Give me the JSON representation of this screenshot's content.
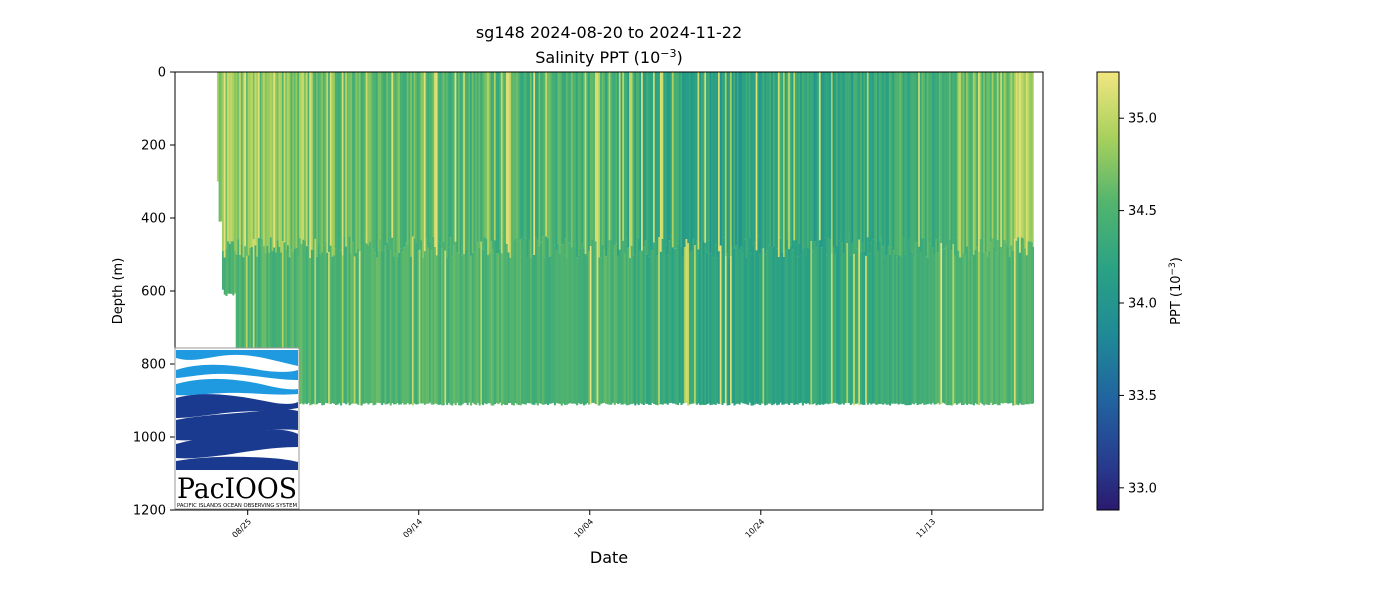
{
  "chart_data": {
    "type": "heatmap",
    "title": "sg148 2024-08-20 to 2024-11-22",
    "subtitle_prefix": "Salinity PPT (10",
    "subtitle_exp": "−3",
    "subtitle_suffix": ")",
    "xlabel": "Date",
    "ylabel": "Depth (m)",
    "x_ticks": [
      "08/25",
      "09/14",
      "10/04",
      "10/24",
      "11/13"
    ],
    "x_tick_days": [
      5,
      25,
      45,
      65,
      85
    ],
    "xlim_days": [
      -3.5,
      98
    ],
    "data_start_day": 1.4,
    "data_end_day": 96.9,
    "y_ticks": [
      0,
      200,
      400,
      600,
      800,
      1000,
      1200
    ],
    "ylim": [
      1200,
      0
    ],
    "y_inverted": true,
    "max_depth_profile": [
      {
        "day": 1.4,
        "depth": 300
      },
      {
        "day": 1.8,
        "depth": 410
      },
      {
        "day": 2.1,
        "depth": 600
      },
      {
        "day": 3.5,
        "depth": 610
      },
      {
        "day": 3.7,
        "depth": 910
      },
      {
        "day": 96.9,
        "depth": 910
      }
    ],
    "colorbar": {
      "label_prefix": "PPT (10",
      "label_exp": "−3",
      "label_suffix": ")",
      "range": [
        32.88,
        35.25
      ],
      "ticks": [
        "33.0",
        "33.5",
        "34.0",
        "34.5",
        "35.0"
      ],
      "tick_values": [
        33.0,
        33.5,
        34.0,
        34.5,
        35.0
      ],
      "colormap": "viridis-like (dark indigo to pale yellow)"
    },
    "salinity_trend": [
      {
        "day": 1.4,
        "value": 34.85
      },
      {
        "day": 20,
        "value": 34.55
      },
      {
        "day": 45,
        "value": 34.45
      },
      {
        "day": 60,
        "value": 34.2
      },
      {
        "day": 75,
        "value": 34.25
      },
      {
        "day": 88,
        "value": 34.55
      },
      {
        "day": 96.9,
        "value": 34.8
      }
    ],
    "deep_layer_value": 34.5,
    "grid": false,
    "legend": "colorbar-right"
  },
  "logo": {
    "name": "PacIOOS",
    "tagline": "PACIFIC ISLANDS OCEAN OBSERVING SYSTEM"
  },
  "colors": {
    "axis": "#000000",
    "background": "#ffffff",
    "logo_light_blue": "#1f9ae0",
    "logo_dark_blue": "#1a3a8f"
  }
}
